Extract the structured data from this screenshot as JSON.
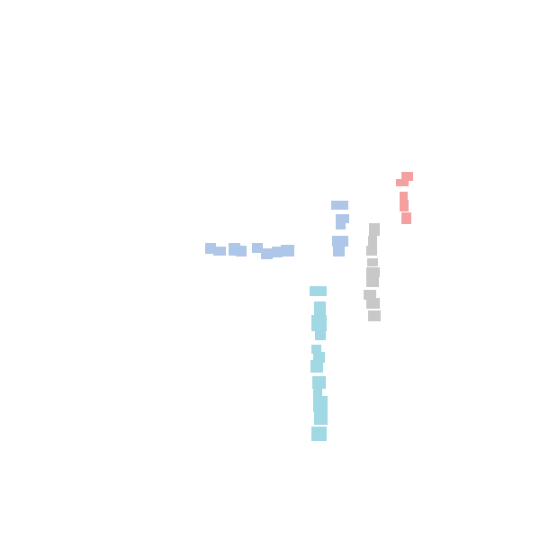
{
  "colors": {
    "background": "#ffffff",
    "red_group": "#f5a0a0",
    "gray_group": "#c8c8c8",
    "blue_group": "#aec6e8",
    "cyan_group": "#a0d8e4"
  }
}
